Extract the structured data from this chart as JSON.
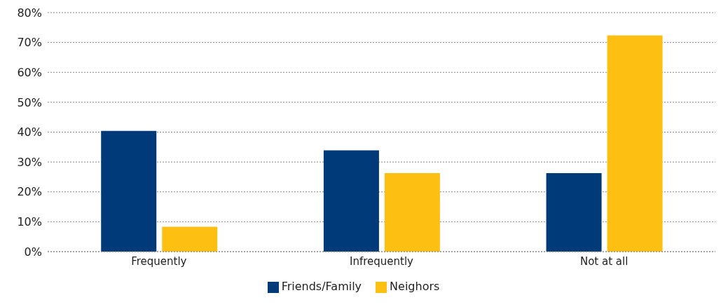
{
  "chart_data": {
    "type": "bar",
    "categories": [
      "Frequently",
      "Infrequently",
      "Not at all"
    ],
    "series": [
      {
        "name": "Friends/Family",
        "color": "#003a78",
        "values": [
          40.4,
          33.9,
          26.3
        ]
      },
      {
        "name": "Neighors",
        "color": "#fdc012",
        "values": [
          8.3,
          26.3,
          72.4
        ]
      }
    ],
    "ylim": [
      0,
      80
    ],
    "yticks": [
      {
        "value": 0,
        "label": "0%"
      },
      {
        "value": 10,
        "label": "10%"
      },
      {
        "value": 20,
        "label": "20%"
      },
      {
        "value": 30,
        "label": "30%"
      },
      {
        "value": 40,
        "label": "40%"
      },
      {
        "value": 50,
        "label": "50%"
      },
      {
        "value": 60,
        "label": "60%"
      },
      {
        "value": 70,
        "label": "70%"
      },
      {
        "value": 80,
        "label": "80%"
      }
    ],
    "grid": "y",
    "legend": "bottom"
  }
}
